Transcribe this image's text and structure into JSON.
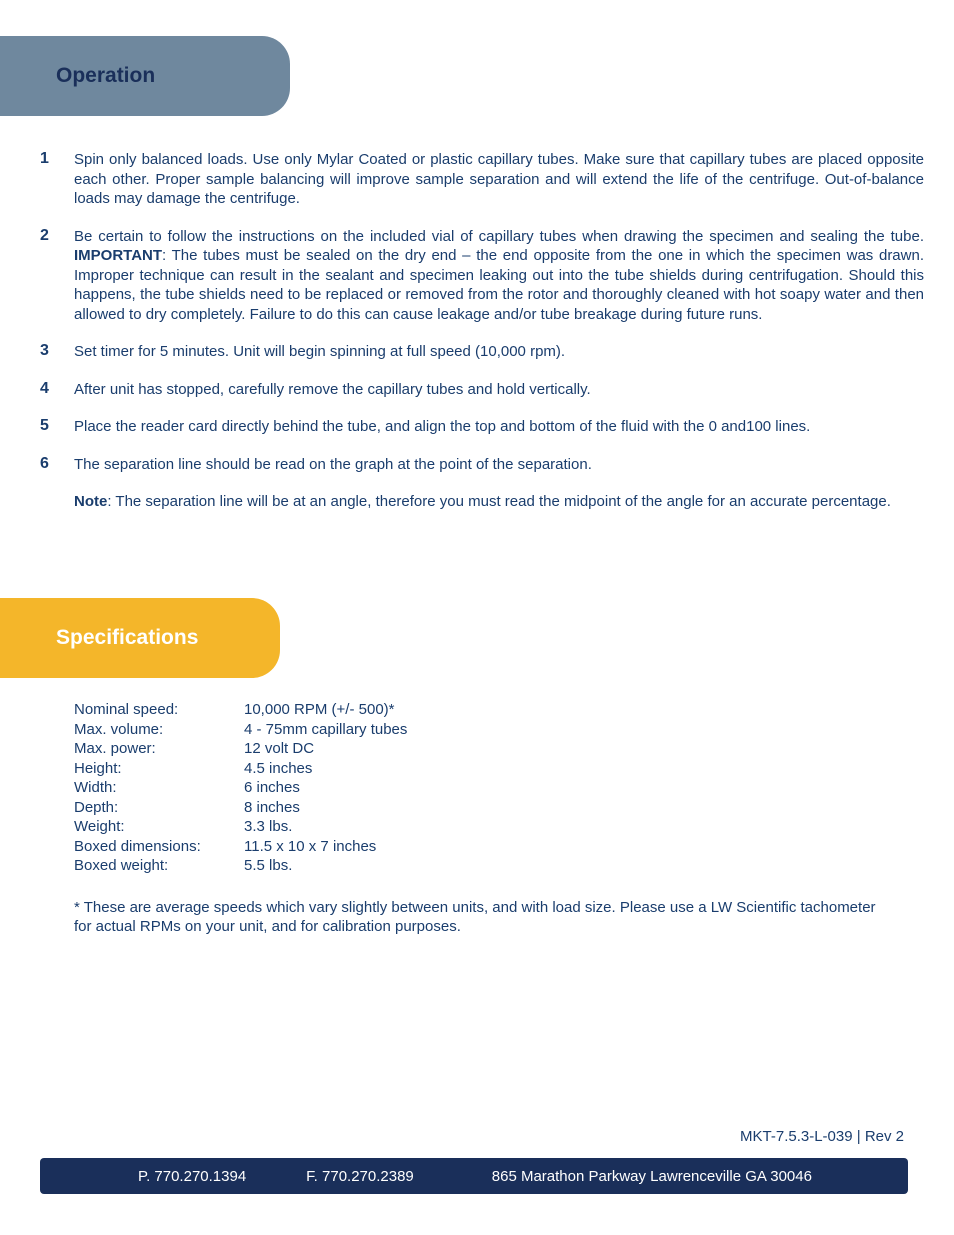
{
  "colors": {
    "text": "#1a3d6d",
    "tab_operation_bg": "#6f889e",
    "tab_operation_text": "#1a2f5a",
    "tab_specs_bg": "#f4b62a",
    "tab_specs_text": "#ffffff",
    "footer_bg": "#1a2f5a",
    "footer_text": "#ffffff"
  },
  "sections": {
    "operation": {
      "title": "Operation"
    },
    "specs": {
      "title": "Specifications"
    }
  },
  "operation": {
    "items": [
      {
        "num": "1",
        "text": "Spin only balanced loads. Use only Mylar Coated or plastic capillary tubes. Make sure that capillary tubes are placed opposite each other. Proper sample balancing will improve sample separation and will extend the life of the centrifuge. Out-of-balance loads may damage the centrifuge."
      },
      {
        "num": "2",
        "text_pre": "Be certain to follow the instructions on the included vial of capillary tubes when drawing the specimen and sealing the tube. ",
        "important": "IMPORTANT",
        "text_post": ": The tubes must be sealed on the dry end – the end opposite from the one in which the specimen was drawn. Improper technique can result in the sealant and specimen leaking out into the tube shields during centrifugation. Should this happens, the tube shields need to be replaced or removed from the rotor and thoroughly cleaned with hot soapy water and then allowed to dry completely. Failure to do this can cause leakage and/or tube breakage during future runs."
      },
      {
        "num": "3",
        "text": "Set timer for 5 minutes. Unit will begin spinning at full speed (10,000 rpm)."
      },
      {
        "num": "4",
        "text": "After unit has stopped, carefully remove the capillary tubes and hold vertically."
      },
      {
        "num": "5",
        "text": "Place the reader card directly behind the tube, and align the top and bottom of the fluid with the 0 and100 lines."
      },
      {
        "num": "6",
        "text": "The separation line should be read on the graph at the point of the separation."
      }
    ],
    "note_label": "Note",
    "note_text": ": The separation line will be at an angle, therefore you must read the midpoint of the angle for an accurate percentage."
  },
  "specifications": {
    "rows": [
      {
        "label": "Nominal speed:",
        "value": "10,000 RPM (+/- 500)*"
      },
      {
        "label": "Max. volume:",
        "value": "4 - 75mm capillary tubes"
      },
      {
        "label": "Max. power:",
        "value": "12 volt DC"
      },
      {
        "label": "Height:",
        "value": "4.5 inches"
      },
      {
        "label": "Width:",
        "value": "6 inches"
      },
      {
        "label": "Depth:",
        "value": "8 inches"
      },
      {
        "label": "Weight:",
        "value": "3.3 lbs."
      },
      {
        "label": "Boxed dimensions:",
        "value": "11.5 x 10 x 7 inches"
      },
      {
        "label": "Boxed weight:",
        "value": "5.5 lbs."
      }
    ],
    "footnote": "* These are average speeds which vary slightly between units, and with load size.  Please use a LW Scientific tachometer for actual RPMs on your unit, and for calibration purposes."
  },
  "doc_rev": "MKT-7.5.3-L-039 | Rev 2",
  "footer": {
    "phone": "P. 770.270.1394",
    "fax": "F. 770.270.2389",
    "address": "865 Marathon Parkway Lawrenceville GA 30046"
  }
}
